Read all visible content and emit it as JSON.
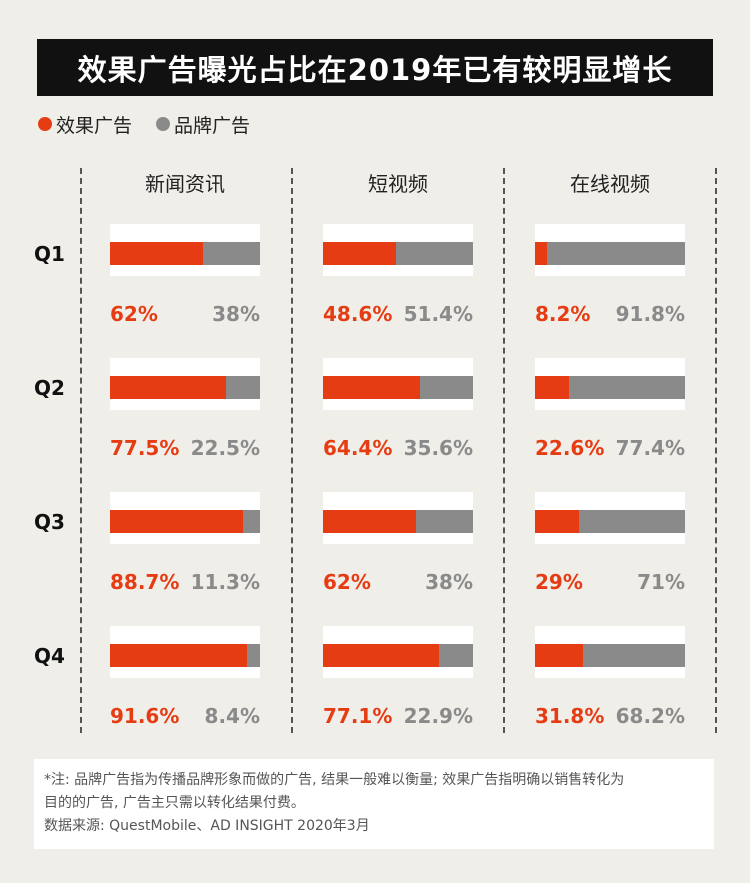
{
  "colors": {
    "effect": "#e63c13",
    "brand": "#8a8a8a",
    "title_bg": "#111111"
  },
  "chart_data": {
    "type": "bar",
    "title": "效果广告曝光占比在2019年已有较明显增长",
    "legend": [
      {
        "name": "效果广告",
        "color": "#e63c13"
      },
      {
        "name": "品牌广告",
        "color": "#8a8a8a"
      }
    ],
    "columns": [
      "新闻资讯",
      "短视频",
      "在线视频"
    ],
    "rows": [
      "Q1",
      "Q2",
      "Q3",
      "Q4"
    ],
    "values": [
      [
        {
          "effect": "62%",
          "brand": "38%"
        },
        {
          "effect": "48.6%",
          "brand": "51.4%"
        },
        {
          "effect": "8.2%",
          "brand": "91.8%"
        }
      ],
      [
        {
          "effect": "77.5%",
          "brand": "22.5%"
        },
        {
          "effect": "64.4%",
          "brand": "35.6%"
        },
        {
          "effect": "22.6%",
          "brand": "77.4%"
        }
      ],
      [
        {
          "effect": "88.7%",
          "brand": "11.3%"
        },
        {
          "effect": "62%",
          "brand": "38%"
        },
        {
          "effect": "29%",
          "brand": "71%"
        }
      ],
      [
        {
          "effect": "91.6%",
          "brand": "8.4%"
        },
        {
          "effect": "77.1%",
          "brand": "22.9%"
        },
        {
          "effect": "31.8%",
          "brand": "68.2%"
        }
      ]
    ],
    "stacked": true,
    "ylim": [
      0,
      100
    ]
  },
  "footnote": {
    "line1": "*注: 品牌广告指为传播品牌形象而做的广告, 结果一般难以衡量; 效果广告指明确以销售转化为",
    "line2": "目的的广告, 广告主只需以转化结果付费。",
    "source": "数据来源: QuestMobile、AD INSIGHT 2020年3月"
  }
}
